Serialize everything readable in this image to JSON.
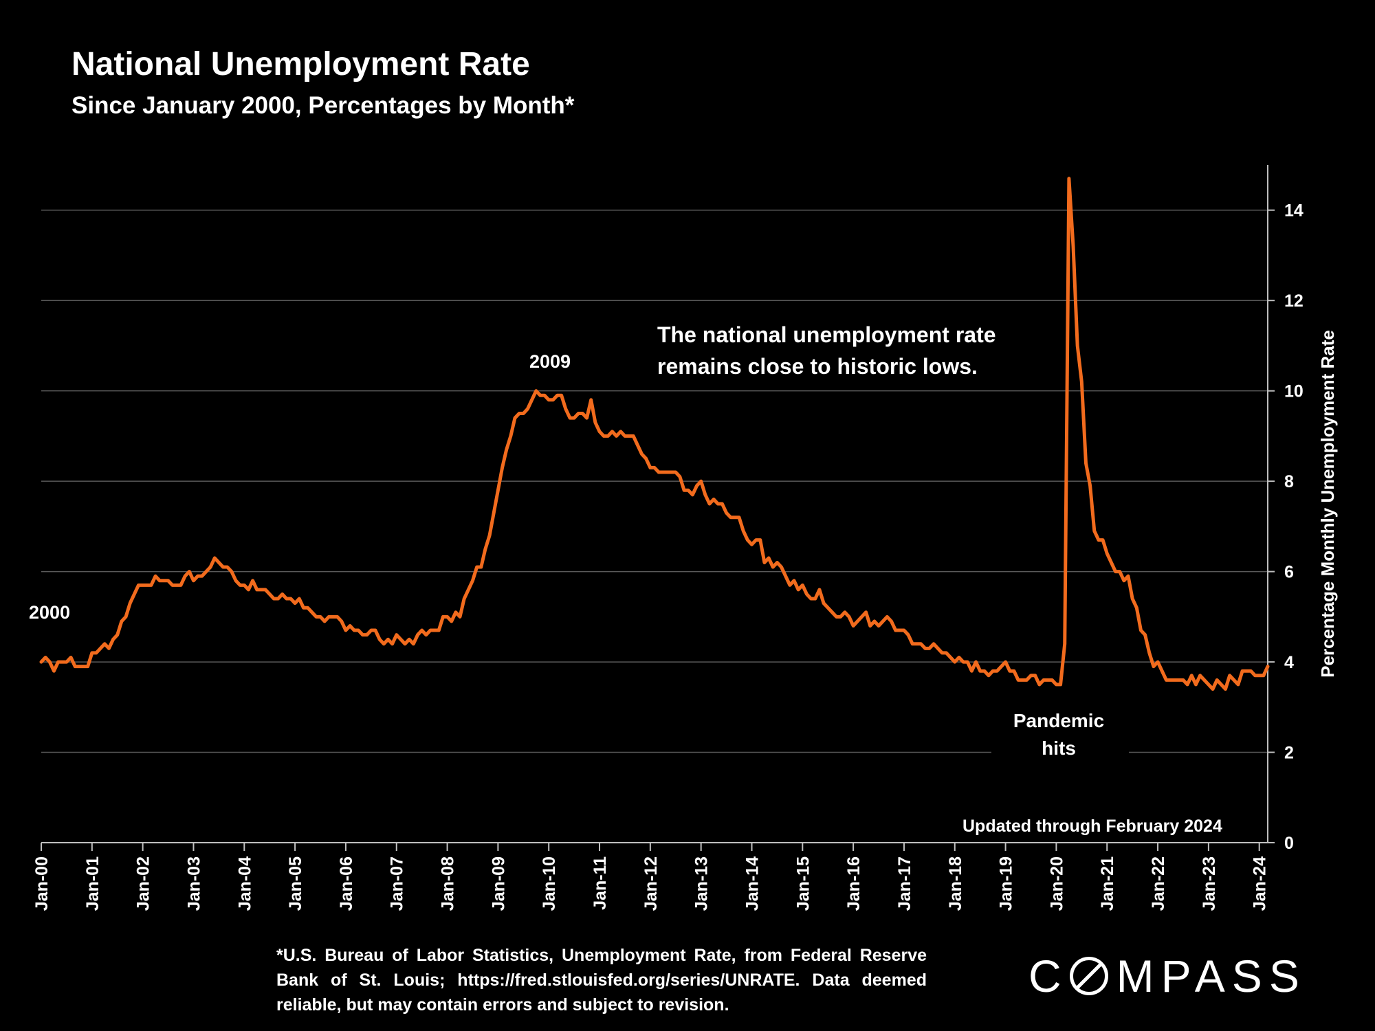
{
  "chart_data": {
    "type": "line",
    "title": "National Unemployment Rate",
    "subtitle": "Since January 2000, Percentages by Month*",
    "ylabel": "Percentage Monthly Unemployment Rate",
    "xlabel": "",
    "ylim": [
      0,
      15
    ],
    "yticks": [
      0,
      2,
      4,
      6,
      8,
      10,
      12,
      14
    ],
    "x_start": "Jan-00",
    "x_end": "Feb-24",
    "xticks": [
      "Jan-00",
      "Jan-01",
      "Jan-02",
      "Jan-03",
      "Jan-04",
      "Jan-05",
      "Jan-06",
      "Jan-07",
      "Jan-08",
      "Jan-09",
      "Jan-10",
      "Jan-11",
      "Jan-12",
      "Jan-13",
      "Jan-14",
      "Jan-15",
      "Jan-16",
      "Jan-17",
      "Jan-18",
      "Jan-19",
      "Jan-20",
      "Jan-21",
      "Jan-22",
      "Jan-23",
      "Jan-24"
    ],
    "series": [
      {
        "name": "Unemployment Rate",
        "color": "#f26b1d",
        "values": [
          4.0,
          4.1,
          4.0,
          3.8,
          4.0,
          4.0,
          4.0,
          4.1,
          3.9,
          3.9,
          3.9,
          3.9,
          4.2,
          4.2,
          4.3,
          4.4,
          4.3,
          4.5,
          4.6,
          4.9,
          5.0,
          5.3,
          5.5,
          5.7,
          5.7,
          5.7,
          5.7,
          5.9,
          5.8,
          5.8,
          5.8,
          5.7,
          5.7,
          5.7,
          5.9,
          6.0,
          5.8,
          5.9,
          5.9,
          6.0,
          6.1,
          6.3,
          6.2,
          6.1,
          6.1,
          6.0,
          5.8,
          5.7,
          5.7,
          5.6,
          5.8,
          5.6,
          5.6,
          5.6,
          5.5,
          5.4,
          5.4,
          5.5,
          5.4,
          5.4,
          5.3,
          5.4,
          5.2,
          5.2,
          5.1,
          5.0,
          5.0,
          4.9,
          5.0,
          5.0,
          5.0,
          4.9,
          4.7,
          4.8,
          4.7,
          4.7,
          4.6,
          4.6,
          4.7,
          4.7,
          4.5,
          4.4,
          4.5,
          4.4,
          4.6,
          4.5,
          4.4,
          4.5,
          4.4,
          4.6,
          4.7,
          4.6,
          4.7,
          4.7,
          4.7,
          5.0,
          5.0,
          4.9,
          5.1,
          5.0,
          5.4,
          5.6,
          5.8,
          6.1,
          6.1,
          6.5,
          6.8,
          7.3,
          7.8,
          8.3,
          8.7,
          9.0,
          9.4,
          9.5,
          9.5,
          9.6,
          9.8,
          10.0,
          9.9,
          9.9,
          9.8,
          9.8,
          9.9,
          9.9,
          9.6,
          9.4,
          9.4,
          9.5,
          9.5,
          9.4,
          9.8,
          9.3,
          9.1,
          9.0,
          9.0,
          9.1,
          9.0,
          9.1,
          9.0,
          9.0,
          9.0,
          8.8,
          8.6,
          8.5,
          8.3,
          8.3,
          8.2,
          8.2,
          8.2,
          8.2,
          8.2,
          8.1,
          7.8,
          7.8,
          7.7,
          7.9,
          8.0,
          7.7,
          7.5,
          7.6,
          7.5,
          7.5,
          7.3,
          7.2,
          7.2,
          7.2,
          6.9,
          6.7,
          6.6,
          6.7,
          6.7,
          6.2,
          6.3,
          6.1,
          6.2,
          6.1,
          5.9,
          5.7,
          5.8,
          5.6,
          5.7,
          5.5,
          5.4,
          5.4,
          5.6,
          5.3,
          5.2,
          5.1,
          5.0,
          5.0,
          5.1,
          5.0,
          4.8,
          4.9,
          5.0,
          5.1,
          4.8,
          4.9,
          4.8,
          4.9,
          5.0,
          4.9,
          4.7,
          4.7,
          4.7,
          4.6,
          4.4,
          4.4,
          4.4,
          4.3,
          4.3,
          4.4,
          4.3,
          4.2,
          4.2,
          4.1,
          4.0,
          4.1,
          4.0,
          4.0,
          3.8,
          4.0,
          3.8,
          3.8,
          3.7,
          3.8,
          3.8,
          3.9,
          4.0,
          3.8,
          3.8,
          3.6,
          3.6,
          3.6,
          3.7,
          3.7,
          3.5,
          3.6,
          3.6,
          3.6,
          3.5,
          3.5,
          4.4,
          14.7,
          13.2,
          11.0,
          10.2,
          8.4,
          7.9,
          6.9,
          6.7,
          6.7,
          6.4,
          6.2,
          6.0,
          6.0,
          5.8,
          5.9,
          5.4,
          5.2,
          4.7,
          4.6,
          4.2,
          3.9,
          4.0,
          3.8,
          3.6,
          3.6,
          3.6,
          3.6,
          3.6,
          3.5,
          3.7,
          3.5,
          3.7,
          3.6,
          3.5,
          3.4,
          3.6,
          3.5,
          3.4,
          3.7,
          3.6,
          3.5,
          3.8,
          3.8,
          3.8,
          3.7,
          3.7,
          3.7,
          3.9
        ]
      }
    ],
    "annotations": [
      {
        "id": "start",
        "text": "2000"
      },
      {
        "id": "peak2009",
        "text": "2009"
      },
      {
        "id": "pandemic_line1",
        "text": "Pandemic"
      },
      {
        "id": "pandemic_line2",
        "text": "hits"
      },
      {
        "id": "note_line1",
        "text": "The national unemployment rate"
      },
      {
        "id": "note_line2",
        "text": "remains close to historic lows."
      },
      {
        "id": "updated",
        "text": "Updated through February 2024"
      }
    ],
    "grid": true,
    "legend": "none"
  },
  "footnote": "*U.S. Bureau of Labor Statistics, Unemployment Rate, from Federal Reserve Bank of St. Louis; https://fred.stlouisfed.org/series/UNRATE. Data deemed reliable, but may contain errors and subject to revision.",
  "logo": {
    "prefix": "C",
    "suffix": "MPASS"
  }
}
